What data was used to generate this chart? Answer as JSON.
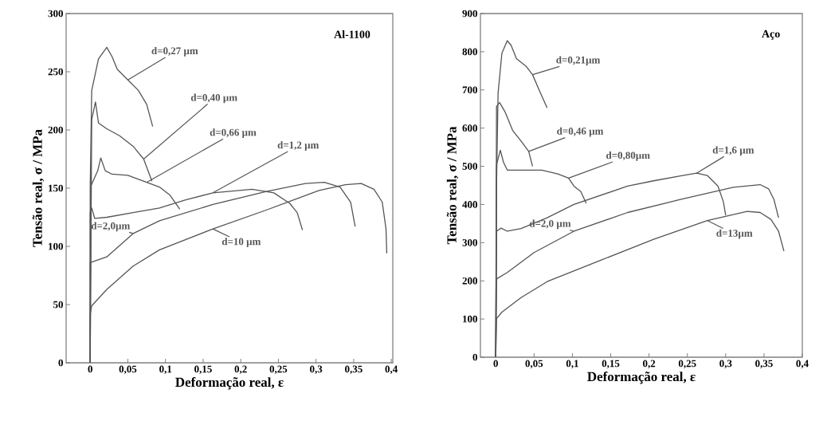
{
  "chart_data": [
    {
      "type": "line",
      "title": "Al-1100",
      "xlabel": "Deformação real, ε",
      "ylabel": "Tensão real, σ / MPa",
      "xlim": [
        -0.032,
        0.402
      ],
      "ylim": [
        0,
        300
      ],
      "xticks": [
        0,
        {
          "value": 0.05,
          "label": "0,05"
        },
        {
          "value": 0.1,
          "label": "0,1"
        },
        {
          "value": 0.15,
          "label": "0,15"
        },
        {
          "value": 0.2,
          "label": "0,2"
        },
        {
          "value": 0.25,
          "label": "0,25"
        },
        {
          "value": 0.3,
          "label": "0,3"
        },
        {
          "value": 0.35,
          "label": "0,35"
        },
        {
          "value": 0.4,
          "label": "0,4"
        }
      ],
      "yticks": [
        0,
        50,
        100,
        150,
        200,
        250,
        300
      ],
      "series": [
        {
          "name": "d=0,27  µm",
          "color": "#555555",
          "x": [
            0,
            0.0,
            0.002,
            0.011,
            0.022,
            0.029,
            0.036,
            0.05,
            0.064,
            0.075,
            0.083
          ],
          "values": [
            0,
            152,
            234,
            261,
            271,
            263,
            252,
            243,
            234,
            222,
            203
          ]
        },
        {
          "name": "d=0,40 µm",
          "color": "#555555",
          "x": [
            0,
            0.002,
            0.007,
            0.011,
            0.022,
            0.039,
            0.057,
            0.071,
            0.082
          ],
          "values": [
            0,
            209,
            224,
            206,
            201,
            195,
            186,
            175,
            156
          ]
        },
        {
          "name": "d=0,66 µm",
          "color": "#555555",
          "x": [
            0,
            0.001,
            0.01,
            0.014,
            0.02,
            0.029,
            0.05,
            0.075,
            0.092,
            0.106,
            0.119
          ],
          "values": [
            0,
            152,
            165,
            176,
            165,
            162,
            161,
            155,
            151,
            144,
            132
          ]
        },
        {
          "name": "d=1,2 µm",
          "color": "#555555",
          "x": [
            0,
            0.0,
            0.002,
            0.006,
            0.022,
            0.057,
            0.092,
            0.127,
            0.163,
            0.215,
            0.244,
            0.265,
            0.275,
            0.282
          ],
          "values": [
            0,
            129,
            133,
            124,
            125,
            129,
            133,
            140,
            146,
            149,
            146,
            137,
            129,
            114
          ]
        },
        {
          "name": "d=2,0µm",
          "color": "#555555",
          "x": [
            0,
            0.0,
            0.022,
            0.057,
            0.092,
            0.163,
            0.233,
            0.286,
            0.311,
            0.332,
            0.346,
            0.352
          ],
          "values": [
            0,
            86,
            91,
            111,
            122,
            136,
            147,
            154,
            155,
            151,
            138,
            117
          ]
        },
        {
          "name": "d=10  µm",
          "color": "#555555",
          "x": [
            0,
            0.0,
            0.002,
            0.022,
            0.057,
            0.092,
            0.163,
            0.233,
            0.304,
            0.339,
            0.36,
            0.377,
            0.388,
            0.393,
            0.394
          ],
          "values": [
            0,
            42,
            49,
            63,
            83,
            97,
            115,
            131,
            148,
            153,
            154,
            149,
            138,
            115,
            94
          ]
        }
      ]
    },
    {
      "type": "line",
      "title": "Aço",
      "xlabel": "Deformação real, ε",
      "ylabel": "Tensão real, σ / MPa",
      "xlim": [
        -0.02,
        0.4
      ],
      "ylim": [
        0,
        900
      ],
      "xticks": [
        0,
        {
          "value": 0.05,
          "label": "0,05"
        },
        {
          "value": 0.1,
          "label": "0,1"
        },
        {
          "value": 0.15,
          "label": "0,15"
        },
        {
          "value": 0.2,
          "label": "0,2"
        },
        {
          "value": 0.25,
          "label": "0,25"
        },
        {
          "value": 0.3,
          "label": "0,3"
        },
        {
          "value": 0.35,
          "label": "0,35"
        },
        {
          "value": 0.4,
          "label": "0,4"
        }
      ],
      "yticks": [
        0,
        100,
        200,
        300,
        400,
        500,
        600,
        700,
        800,
        900
      ],
      "series": [
        {
          "name": "d=0,21µm",
          "color": "#555555",
          "x": [
            0,
            0.001,
            0.003,
            0.008,
            0.015,
            0.02,
            0.027,
            0.04,
            0.048,
            0.057,
            0.067
          ],
          "values": [
            0,
            448,
            691,
            796,
            829,
            817,
            782,
            761,
            740,
            698,
            653
          ]
        },
        {
          "name": "d=0,46 µm",
          "color": "#555555",
          "x": [
            0,
            0.001,
            0.005,
            0.012,
            0.022,
            0.033,
            0.043,
            0.048
          ],
          "values": [
            0,
            657,
            667,
            643,
            594,
            566,
            539,
            500
          ]
        },
        {
          "name": "d=0,80µm",
          "color": "#555555",
          "x": [
            0,
            0.001,
            0.006,
            0.01,
            0.015,
            0.033,
            0.06,
            0.081,
            0.095,
            0.102,
            0.111,
            0.118
          ],
          "values": [
            0,
            504,
            542,
            511,
            490,
            490,
            490,
            480,
            469,
            448,
            434,
            403
          ]
        },
        {
          "name": "d=1,6 µm",
          "color": "#555555",
          "x": [
            0,
            0.001,
            0.007,
            0.015,
            0.033,
            0.067,
            0.102,
            0.172,
            0.206,
            0.241,
            0.262,
            0.276,
            0.29,
            0.297,
            0.3
          ],
          "values": [
            0,
            330,
            338,
            330,
            337,
            365,
            400,
            448,
            462,
            475,
            482,
            476,
            448,
            407,
            372
          ]
        },
        {
          "name": "d=2,0 µm",
          "color": "#555555",
          "x": [
            0,
            0.001,
            0.015,
            0.05,
            0.102,
            0.172,
            0.241,
            0.31,
            0.345,
            0.356,
            0.363,
            0.369
          ],
          "values": [
            0,
            205,
            222,
            274,
            330,
            379,
            413,
            445,
            452,
            441,
            413,
            365
          ]
        },
        {
          "name": "d=13µm",
          "color": "#555555",
          "x": [
            0,
            0.001,
            0.008,
            0.033,
            0.067,
            0.137,
            0.206,
            0.276,
            0.328,
            0.345,
            0.359,
            0.369,
            0.376
          ],
          "values": [
            0,
            101,
            118,
            156,
            198,
            254,
            309,
            358,
            382,
            379,
            361,
            330,
            278
          ]
        }
      ]
    }
  ]
}
